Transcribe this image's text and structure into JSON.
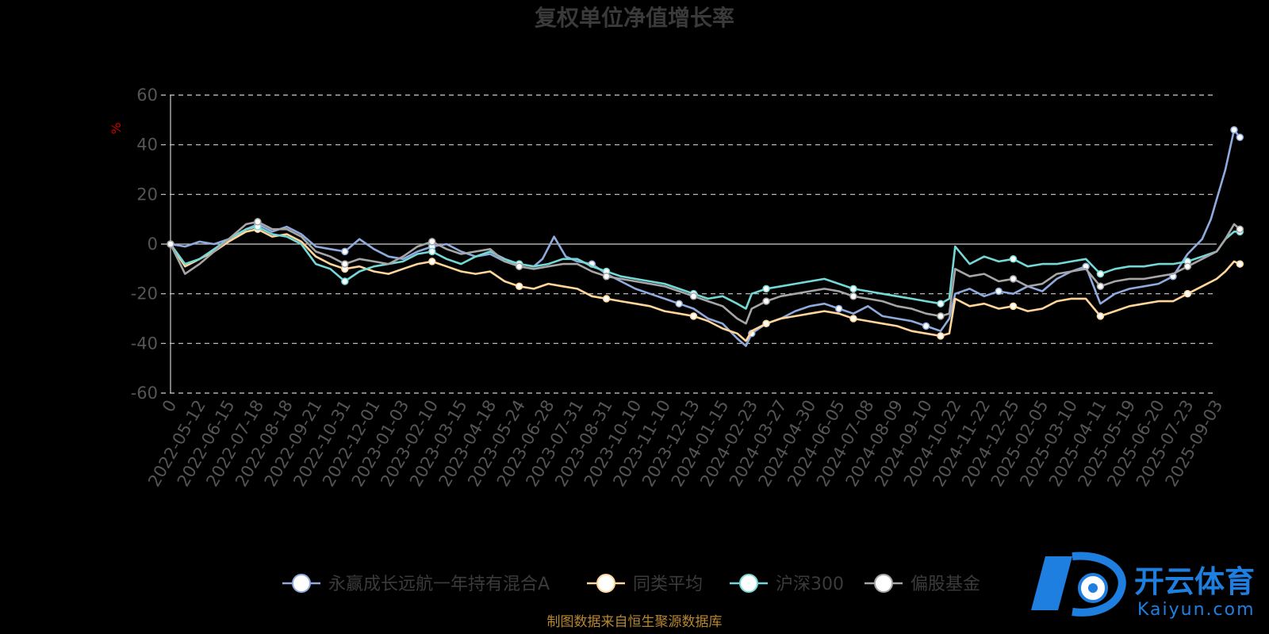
{
  "chart_data": {
    "type": "line",
    "title": "复权单位净值增长率",
    "ylabel": "%",
    "ylim": [
      -60,
      60
    ],
    "yticks": [
      60,
      40,
      20,
      0,
      -20,
      -40,
      -60
    ],
    "grid": true,
    "legend_position": "bottom",
    "x_tick_labels": [
      "0",
      "2022-05-12",
      "2022-06-15",
      "2022-07-18",
      "2022-08-18",
      "2022-09-21",
      "2022-10-31",
      "2022-12-01",
      "2023-01-03",
      "2023-02-10",
      "2023-03-15",
      "2023-04-18",
      "2023-05-24",
      "2023-06-28",
      "2023-07-31",
      "2023-08-31",
      "2023-10-10",
      "2023-11-10",
      "2023-12-13",
      "2024-01-15",
      "2024-02-23",
      "2024-03-27",
      "2024-04-30",
      "2024-06-05",
      "2024-07-08",
      "2024-08-09",
      "2024-09-10",
      "2024-10-22",
      "2024-11-22",
      "2024-12-25",
      "2025-02-05",
      "2025-03-10",
      "2025-04-11",
      "2025-05-19",
      "2025-06-20",
      "2025-07-23",
      "2025-09-03"
    ],
    "series": [
      {
        "name": "永赢成长远航一年持有混合A",
        "color": "#8faadc",
        "points": [
          [
            0,
            0
          ],
          [
            0.5,
            -1
          ],
          [
            1,
            1
          ],
          [
            1.5,
            0
          ],
          [
            2,
            2
          ],
          [
            2.6,
            6
          ],
          [
            3,
            8
          ],
          [
            3.5,
            5
          ],
          [
            4,
            7
          ],
          [
            4.5,
            4
          ],
          [
            5,
            -1
          ],
          [
            5.5,
            -2
          ],
          [
            6,
            -3
          ],
          [
            6.5,
            2
          ],
          [
            7,
            -2
          ],
          [
            7.5,
            -5
          ],
          [
            8,
            -6
          ],
          [
            8.5,
            -3
          ],
          [
            9,
            -1
          ],
          [
            9.5,
            0
          ],
          [
            10,
            -3
          ],
          [
            10.5,
            -5
          ],
          [
            11,
            -4
          ],
          [
            11.5,
            -7
          ],
          [
            12,
            -8
          ],
          [
            12.5,
            -9
          ],
          [
            12.8,
            -6
          ],
          [
            13.2,
            3
          ],
          [
            13.6,
            -5
          ],
          [
            14,
            -7
          ],
          [
            14.5,
            -8
          ],
          [
            15,
            -12
          ],
          [
            15.5,
            -15
          ],
          [
            16,
            -18
          ],
          [
            16.5,
            -20
          ],
          [
            17,
            -22
          ],
          [
            17.5,
            -24
          ],
          [
            18,
            -26
          ],
          [
            18.5,
            -30
          ],
          [
            19,
            -32
          ],
          [
            19.5,
            -38
          ],
          [
            19.8,
            -41
          ],
          [
            20,
            -36
          ],
          [
            20.5,
            -32
          ],
          [
            21,
            -30
          ],
          [
            21.5,
            -27
          ],
          [
            22,
            -25
          ],
          [
            22.5,
            -24
          ],
          [
            23,
            -26
          ],
          [
            23.5,
            -28
          ],
          [
            24,
            -25
          ],
          [
            24.5,
            -29
          ],
          [
            25,
            -30
          ],
          [
            25.5,
            -31
          ],
          [
            26,
            -33
          ],
          [
            26.5,
            -35
          ],
          [
            26.8,
            -30
          ],
          [
            27,
            -20
          ],
          [
            27.5,
            -18
          ],
          [
            28,
            -21
          ],
          [
            28.5,
            -19
          ],
          [
            29,
            -20
          ],
          [
            29.5,
            -17
          ],
          [
            30,
            -19
          ],
          [
            30.5,
            -14
          ],
          [
            31,
            -11
          ],
          [
            31.5,
            -9
          ],
          [
            32,
            -24
          ],
          [
            32.5,
            -20
          ],
          [
            33,
            -18
          ],
          [
            33.5,
            -17
          ],
          [
            34,
            -16
          ],
          [
            34.5,
            -13
          ],
          [
            35,
            -4
          ],
          [
            35.5,
            2
          ],
          [
            35.8,
            10
          ],
          [
            36,
            18
          ],
          [
            36.3,
            30
          ],
          [
            36.6,
            46
          ],
          [
            36.8,
            43
          ]
        ]
      },
      {
        "name": "同类平均",
        "color": "#ffd59a",
        "points": [
          [
            0,
            0
          ],
          [
            0.5,
            -9
          ],
          [
            1,
            -6
          ],
          [
            1.5,
            -3
          ],
          [
            2,
            1
          ],
          [
            2.6,
            5
          ],
          [
            3,
            6
          ],
          [
            3.5,
            3
          ],
          [
            4,
            4
          ],
          [
            4.5,
            1
          ],
          [
            5,
            -5
          ],
          [
            5.5,
            -8
          ],
          [
            6,
            -10
          ],
          [
            6.5,
            -9
          ],
          [
            7,
            -11
          ],
          [
            7.5,
            -12
          ],
          [
            8,
            -10
          ],
          [
            8.5,
            -8
          ],
          [
            9,
            -7
          ],
          [
            9.5,
            -9
          ],
          [
            10,
            -11
          ],
          [
            10.5,
            -12
          ],
          [
            11,
            -11
          ],
          [
            11.5,
            -15
          ],
          [
            12,
            -17
          ],
          [
            12.5,
            -18
          ],
          [
            13,
            -16
          ],
          [
            13.5,
            -17
          ],
          [
            14,
            -18
          ],
          [
            14.5,
            -21
          ],
          [
            15,
            -22
          ],
          [
            15.5,
            -23
          ],
          [
            16,
            -24
          ],
          [
            16.5,
            -25
          ],
          [
            17,
            -27
          ],
          [
            17.5,
            -28
          ],
          [
            18,
            -29
          ],
          [
            18.5,
            -31
          ],
          [
            19,
            -34
          ],
          [
            19.5,
            -36
          ],
          [
            19.8,
            -39
          ],
          [
            20,
            -35
          ],
          [
            20.5,
            -32
          ],
          [
            21,
            -30
          ],
          [
            21.5,
            -29
          ],
          [
            22,
            -28
          ],
          [
            22.5,
            -27
          ],
          [
            23,
            -28
          ],
          [
            23.5,
            -30
          ],
          [
            24,
            -31
          ],
          [
            24.5,
            -32
          ],
          [
            25,
            -33
          ],
          [
            25.5,
            -35
          ],
          [
            26,
            -36
          ],
          [
            26.5,
            -37
          ],
          [
            26.8,
            -36
          ],
          [
            27,
            -22
          ],
          [
            27.5,
            -25
          ],
          [
            28,
            -24
          ],
          [
            28.5,
            -26
          ],
          [
            29,
            -25
          ],
          [
            29.5,
            -27
          ],
          [
            30,
            -26
          ],
          [
            30.5,
            -23
          ],
          [
            31,
            -22
          ],
          [
            31.5,
            -22
          ],
          [
            32,
            -29
          ],
          [
            32.5,
            -27
          ],
          [
            33,
            -25
          ],
          [
            33.5,
            -24
          ],
          [
            34,
            -23
          ],
          [
            34.5,
            -23
          ],
          [
            35,
            -20
          ],
          [
            35.5,
            -17
          ],
          [
            36,
            -14
          ],
          [
            36.3,
            -11
          ],
          [
            36.6,
            -7
          ],
          [
            36.8,
            -8
          ]
        ]
      },
      {
        "name": "沪深300",
        "color": "#74d8d6",
        "points": [
          [
            0,
            0
          ],
          [
            0.5,
            -8
          ],
          [
            1,
            -6
          ],
          [
            1.5,
            -2
          ],
          [
            2,
            2
          ],
          [
            2.6,
            6
          ],
          [
            3,
            7
          ],
          [
            3.5,
            4
          ],
          [
            4,
            3
          ],
          [
            4.5,
            0
          ],
          [
            5,
            -8
          ],
          [
            5.5,
            -10
          ],
          [
            6,
            -15
          ],
          [
            6.5,
            -11
          ],
          [
            7,
            -9
          ],
          [
            7.5,
            -8
          ],
          [
            8,
            -7
          ],
          [
            8.5,
            -4
          ],
          [
            9,
            -3
          ],
          [
            9.5,
            -6
          ],
          [
            10,
            -8
          ],
          [
            10.5,
            -5
          ],
          [
            11,
            -3
          ],
          [
            11.5,
            -6
          ],
          [
            12,
            -8
          ],
          [
            12.5,
            -9
          ],
          [
            13,
            -8
          ],
          [
            13.5,
            -6
          ],
          [
            14,
            -6
          ],
          [
            14.5,
            -9
          ],
          [
            15,
            -11
          ],
          [
            15.5,
            -13
          ],
          [
            16,
            -14
          ],
          [
            16.5,
            -15
          ],
          [
            17,
            -16
          ],
          [
            17.5,
            -18
          ],
          [
            18,
            -20
          ],
          [
            18.5,
            -22
          ],
          [
            19,
            -21
          ],
          [
            19.5,
            -24
          ],
          [
            19.8,
            -26
          ],
          [
            20,
            -20
          ],
          [
            20.5,
            -18
          ],
          [
            21,
            -17
          ],
          [
            21.5,
            -16
          ],
          [
            22,
            -15
          ],
          [
            22.5,
            -14
          ],
          [
            23,
            -16
          ],
          [
            23.5,
            -18
          ],
          [
            24,
            -19
          ],
          [
            24.5,
            -20
          ],
          [
            25,
            -21
          ],
          [
            25.5,
            -22
          ],
          [
            26,
            -23
          ],
          [
            26.5,
            -24
          ],
          [
            26.8,
            -22
          ],
          [
            27,
            -1
          ],
          [
            27.5,
            -8
          ],
          [
            28,
            -5
          ],
          [
            28.5,
            -7
          ],
          [
            29,
            -6
          ],
          [
            29.5,
            -9
          ],
          [
            30,
            -8
          ],
          [
            30.5,
            -8
          ],
          [
            31,
            -7
          ],
          [
            31.5,
            -6
          ],
          [
            32,
            -12
          ],
          [
            32.5,
            -10
          ],
          [
            33,
            -9
          ],
          [
            33.5,
            -9
          ],
          [
            34,
            -8
          ],
          [
            34.5,
            -8
          ],
          [
            35,
            -7
          ],
          [
            35.5,
            -5
          ],
          [
            36,
            -3
          ],
          [
            36.3,
            2
          ],
          [
            36.6,
            5
          ],
          [
            36.8,
            5
          ]
        ]
      },
      {
        "name": "偏股基金",
        "color": "#a6a6a6",
        "points": [
          [
            0,
            0
          ],
          [
            0.5,
            -12
          ],
          [
            1,
            -8
          ],
          [
            1.5,
            -3
          ],
          [
            2,
            2
          ],
          [
            2.6,
            8
          ],
          [
            3,
            9
          ],
          [
            3.5,
            6
          ],
          [
            4,
            6
          ],
          [
            4.5,
            3
          ],
          [
            5,
            -3
          ],
          [
            5.5,
            -5
          ],
          [
            6,
            -8
          ],
          [
            6.5,
            -6
          ],
          [
            7,
            -7
          ],
          [
            7.5,
            -8
          ],
          [
            8,
            -5
          ],
          [
            8.5,
            -1
          ],
          [
            9,
            1
          ],
          [
            9.5,
            -2
          ],
          [
            10,
            -4
          ],
          [
            10.5,
            -3
          ],
          [
            11,
            -2
          ],
          [
            11.5,
            -7
          ],
          [
            12,
            -9
          ],
          [
            12.5,
            -10
          ],
          [
            13,
            -9
          ],
          [
            13.5,
            -8
          ],
          [
            14,
            -8
          ],
          [
            14.5,
            -11
          ],
          [
            15,
            -13
          ],
          [
            15.5,
            -14
          ],
          [
            16,
            -15
          ],
          [
            16.5,
            -16
          ],
          [
            17,
            -17
          ],
          [
            17.5,
            -19
          ],
          [
            18,
            -21
          ],
          [
            18.5,
            -23
          ],
          [
            19,
            -25
          ],
          [
            19.5,
            -30
          ],
          [
            19.8,
            -32
          ],
          [
            20,
            -26
          ],
          [
            20.5,
            -23
          ],
          [
            21,
            -21
          ],
          [
            21.5,
            -20
          ],
          [
            22,
            -19
          ],
          [
            22.5,
            -18
          ],
          [
            23,
            -19
          ],
          [
            23.5,
            -21
          ],
          [
            24,
            -22
          ],
          [
            24.5,
            -23
          ],
          [
            25,
            -25
          ],
          [
            25.5,
            -26
          ],
          [
            26,
            -28
          ],
          [
            26.5,
            -29
          ],
          [
            26.8,
            -28
          ],
          [
            27,
            -10
          ],
          [
            27.5,
            -13
          ],
          [
            28,
            -12
          ],
          [
            28.5,
            -15
          ],
          [
            29,
            -14
          ],
          [
            29.5,
            -17
          ],
          [
            30,
            -16
          ],
          [
            30.5,
            -12
          ],
          [
            31,
            -11
          ],
          [
            31.5,
            -10
          ],
          [
            32,
            -17
          ],
          [
            32.5,
            -15
          ],
          [
            33,
            -14
          ],
          [
            33.5,
            -14
          ],
          [
            34,
            -13
          ],
          [
            34.5,
            -12
          ],
          [
            35,
            -9
          ],
          [
            35.5,
            -6
          ],
          [
            36,
            -3
          ],
          [
            36.3,
            2
          ],
          [
            36.6,
            8
          ],
          [
            36.8,
            6
          ]
        ]
      }
    ]
  },
  "source_note": "制图数据来自恒生聚源数据库",
  "brand": {
    "cn": "开云体育",
    "en": "Kaiyun.com"
  }
}
